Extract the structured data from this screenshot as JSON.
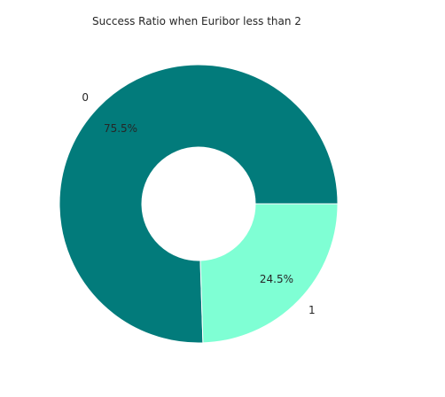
{
  "chart_data": {
    "type": "pie",
    "style": "donut",
    "title": "Success Ratio when Euribor less than 2",
    "categories": [
      "0",
      "1"
    ],
    "values": [
      75.5,
      24.5
    ],
    "value_labels": [
      "75.5%",
      "24.5%"
    ],
    "colors": [
      "#027b7b",
      "#7fffd4"
    ],
    "legend": false
  }
}
